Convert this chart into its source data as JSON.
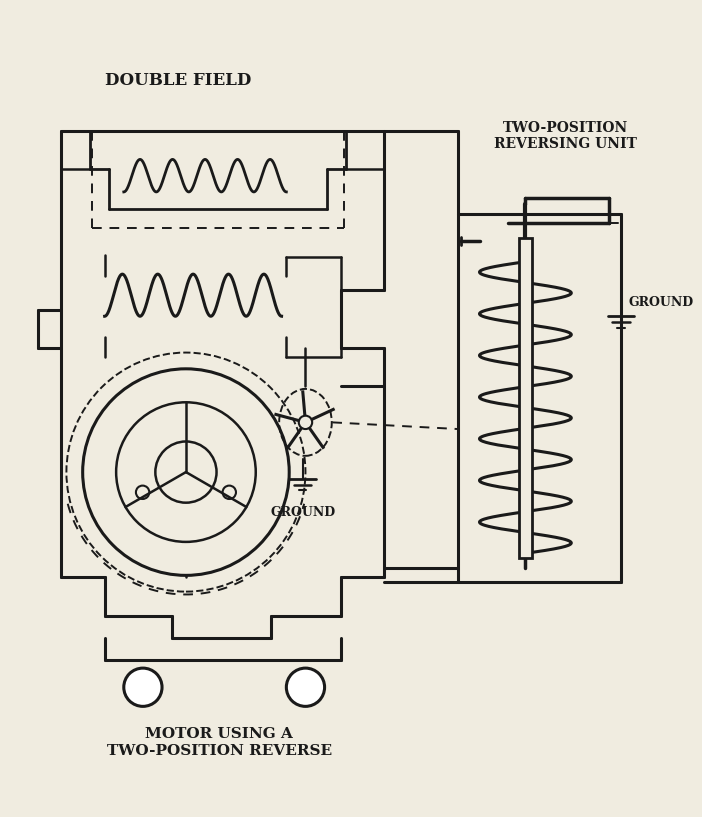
{
  "title_double_field": "DOUBLE FIELD",
  "title_reversing_unit": "TWO-POSITION\nREVERSING UNIT",
  "title_motor": "MOTOR USING A\nTWO-POSITION REVERSE",
  "ground_label1": "GROUND",
  "ground_label2": "GROUND",
  "bg_color": "#f0ece0",
  "line_color": "#1a1a1a",
  "figsize": [
    7.02,
    8.17
  ],
  "dpi": 100
}
